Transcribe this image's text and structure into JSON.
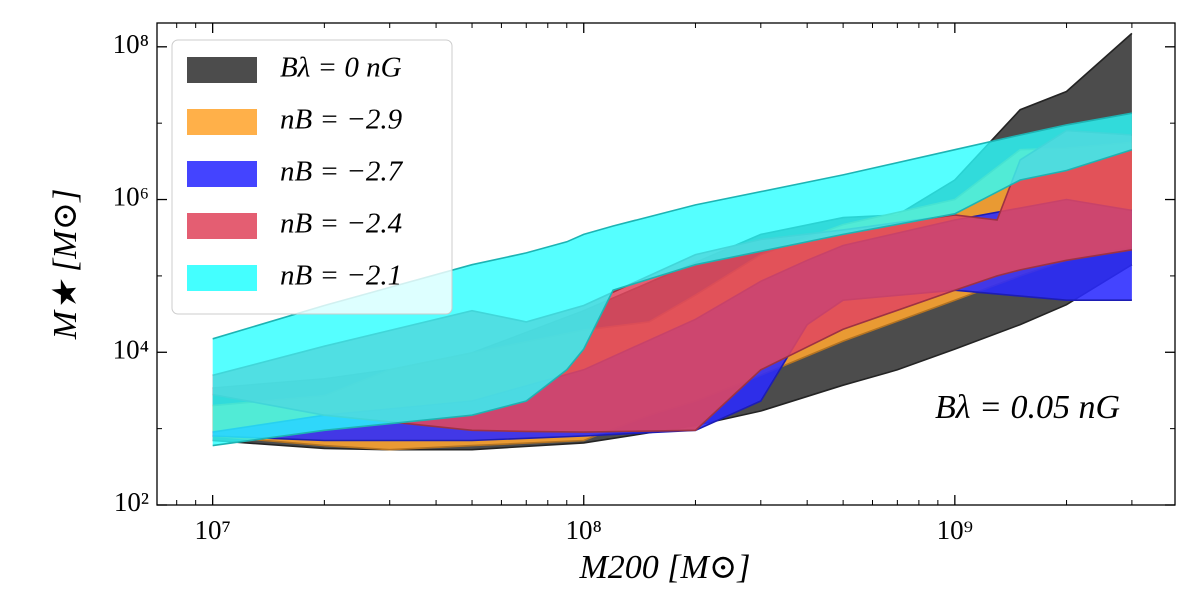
{
  "chart_data": {
    "type": "band",
    "xlabel": "M200 [M⊙]",
    "ylabel": "M★ [M⊙]",
    "annotation": "Bλ = 0.05 nG",
    "log_x": true,
    "log_y": true,
    "legend": "upper left",
    "xlim": [
      7080000,
      3920000000
    ],
    "ylim": [
      100,
      205000000
    ],
    "xticks": [
      {
        "value": 10000000,
        "label": "10⁷"
      },
      {
        "value": 100000000,
        "label": "10⁸"
      },
      {
        "value": 1000000000,
        "label": "10⁹"
      }
    ],
    "yticks": [
      {
        "value": 100,
        "label": "10²"
      },
      {
        "value": 10000,
        "label": "10⁴"
      },
      {
        "value": 1000000,
        "label": "10⁶"
      },
      {
        "value": 100000000,
        "label": "10⁸"
      }
    ],
    "series": [
      {
        "name": "Bλ = 0 nG",
        "color": "#333333",
        "x": [
          10000000,
          20000000,
          30000000,
          50000000,
          100000000,
          200000000,
          300000000,
          500000000,
          700000000,
          1000000000,
          1500000000,
          2000000000,
          3000000000
        ],
        "lower": [
          700,
          550,
          530,
          530,
          650,
          1100,
          1700,
          3700,
          5900,
          11000,
          23000,
          42000,
          140000
        ],
        "upper": [
          3400,
          4500,
          5900,
          9800,
          35000,
          150000,
          350000,
          580000,
          630000,
          1800000,
          15000000,
          26000000,
          150000000
        ]
      },
      {
        "name": "nB = −2.9",
        "color": "#ffa530",
        "x": [
          10000000,
          20000000,
          30000000,
          50000000,
          100000000,
          150000000,
          200000000,
          300000000,
          500000000,
          1000000000,
          1500000000,
          2000000000,
          3000000000
        ],
        "lower": [
          800,
          600,
          530,
          600,
          700,
          1500,
          2300,
          5000,
          14000,
          48000,
          100000,
          160000,
          240000
        ],
        "upper": [
          2000,
          2700,
          5900,
          9800,
          19500,
          25000,
          56000,
          190000,
          470000,
          1000000,
          4500000,
          4700000,
          5600000
        ]
      },
      {
        "name": "nB = −2.7",
        "color": "#2a2aff",
        "x": [
          10000000,
          20000000,
          50000000,
          100000000,
          200000000,
          300000000,
          400000000,
          500000000,
          1000000000,
          2000000000,
          3000000000
        ],
        "lower": [
          800,
          700,
          700,
          800,
          950,
          2300,
          23000,
          48000,
          65000,
          48000,
          48000
        ],
        "upper": [
          900,
          1500,
          2300,
          5900,
          27000,
          85000,
          160000,
          250000,
          540000,
          1000000,
          720000
        ]
      },
      {
        "name": "nB = −2.4",
        "color": "#e0485f",
        "x": [
          10000000,
          20000000,
          50000000,
          70000000,
          100000000,
          200000000,
          300000000,
          500000000,
          1000000000,
          1300000000,
          1500000000,
          2000000000,
          3000000000
        ],
        "lower": [
          2800,
          1500,
          950,
          920,
          900,
          950,
          5900,
          20000,
          65000,
          100000,
          120000,
          160000,
          220000
        ],
        "upper": [
          5000,
          12000,
          35000,
          25000,
          41000,
          190000,
          300000,
          400000,
          630000,
          540000,
          3300000,
          8000000,
          7000000
        ]
      },
      {
        "name": "nB = −2.1",
        "color": "#2affff",
        "x": [
          10000000,
          20000000,
          50000000,
          70000000,
          90000000,
          100000000,
          120000000,
          200000000,
          500000000,
          1000000000,
          1500000000,
          2000000000,
          3000000000
        ],
        "lower": [
          600,
          950,
          1500,
          2300,
          5900,
          11000,
          65000,
          140000,
          350000,
          650000,
          1800000,
          2400000,
          4500000
        ],
        "upper": [
          15000,
          41000,
          140000,
          200000,
          280000,
          350000,
          450000,
          850000,
          2100000,
          4500000,
          7000000,
          9500000,
          13500000
        ]
      }
    ]
  }
}
